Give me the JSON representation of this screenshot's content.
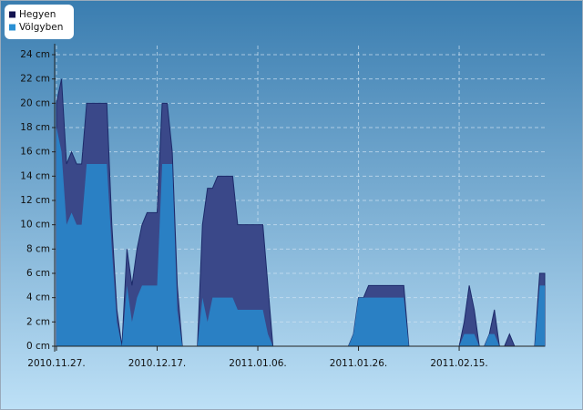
{
  "chart_data": {
    "type": "area",
    "categories": [
      "2010.11.27.",
      null,
      null,
      null,
      null,
      null,
      null,
      null,
      null,
      null,
      null,
      null,
      null,
      null,
      null,
      null,
      null,
      null,
      null,
      null,
      "2010.12.17.",
      null,
      null,
      null,
      null,
      null,
      null,
      null,
      null,
      null,
      null,
      null,
      null,
      null,
      null,
      null,
      null,
      null,
      null,
      null,
      "2011.01.06.",
      null,
      null,
      null,
      null,
      null,
      null,
      null,
      null,
      null,
      null,
      null,
      null,
      null,
      null,
      null,
      null,
      null,
      null,
      null,
      "2011.01.26.",
      null,
      null,
      null,
      null,
      null,
      null,
      null,
      null,
      null,
      null,
      null,
      null,
      null,
      null,
      null,
      null,
      null,
      null,
      null,
      "2011.02.15.",
      null,
      null,
      null,
      null,
      null,
      null,
      null,
      null,
      null,
      null,
      null,
      null,
      null,
      null,
      null,
      null,
      null
    ],
    "series": [
      {
        "name": "Hegyen",
        "color": "#3a4889",
        "legend_color": "#141450",
        "values": [
          20,
          22,
          15,
          16,
          15,
          15,
          20,
          20,
          20,
          20,
          20,
          10,
          3,
          0,
          8,
          5,
          8,
          10,
          11,
          11,
          11,
          20,
          20,
          16,
          5,
          0,
          0,
          0,
          0,
          10,
          13,
          13,
          14,
          14,
          14,
          14,
          10,
          10,
          10,
          10,
          10,
          10,
          5,
          0,
          0,
          0,
          0,
          0,
          0,
          0,
          0,
          0,
          0,
          0,
          0,
          0,
          0,
          0,
          0,
          1,
          4,
          4,
          5,
          5,
          5,
          5,
          5,
          5,
          5,
          5,
          0,
          0,
          0,
          0,
          0,
          0,
          0,
          0,
          0,
          0,
          0,
          2,
          5,
          3,
          0,
          0,
          1,
          3,
          0,
          0,
          1,
          0,
          0,
          0,
          0,
          0,
          6,
          6
        ]
      },
      {
        "name": "Völgyben",
        "color": "#2a80c4",
        "legend_color": "#2a90d4",
        "values": [
          18,
          16,
          10,
          11,
          10,
          10,
          15,
          15,
          15,
          15,
          15,
          8,
          2,
          0,
          5,
          2,
          4,
          5,
          5,
          5,
          5,
          15,
          15,
          15,
          3,
          0,
          0,
          0,
          0,
          4,
          2,
          4,
          4,
          4,
          4,
          4,
          3,
          3,
          3,
          3,
          3,
          3,
          1,
          0,
          0,
          0,
          0,
          0,
          0,
          0,
          0,
          0,
          0,
          0,
          0,
          0,
          0,
          0,
          0,
          1,
          4,
          4,
          4,
          4,
          4,
          4,
          4,
          4,
          4,
          4,
          0,
          0,
          0,
          0,
          0,
          0,
          0,
          0,
          0,
          0,
          0,
          1,
          1,
          1,
          0,
          0,
          1,
          1,
          0,
          0,
          0,
          0,
          0,
          0,
          0,
          0,
          5,
          5
        ]
      }
    ],
    "ylim": [
      0,
      24
    ],
    "yticks": [
      {
        "value": 0,
        "label": "0 cm"
      },
      {
        "value": 2,
        "label": "2 cm"
      },
      {
        "value": 4,
        "label": "4 cm"
      },
      {
        "value": 6,
        "label": "6 cm"
      },
      {
        "value": 8,
        "label": "8 cm"
      },
      {
        "value": 10,
        "label": "10 cm"
      },
      {
        "value": 12,
        "label": "12 cm"
      },
      {
        "value": 14,
        "label": "14 cm"
      },
      {
        "value": 16,
        "label": "16 cm"
      },
      {
        "value": 18,
        "label": "18 cm"
      },
      {
        "value": 20,
        "label": "20 cm"
      },
      {
        "value": 22,
        "label": "22 cm"
      },
      {
        "value": 24,
        "label": "24 cm"
      }
    ],
    "grid": true,
    "legend": "top-left"
  }
}
